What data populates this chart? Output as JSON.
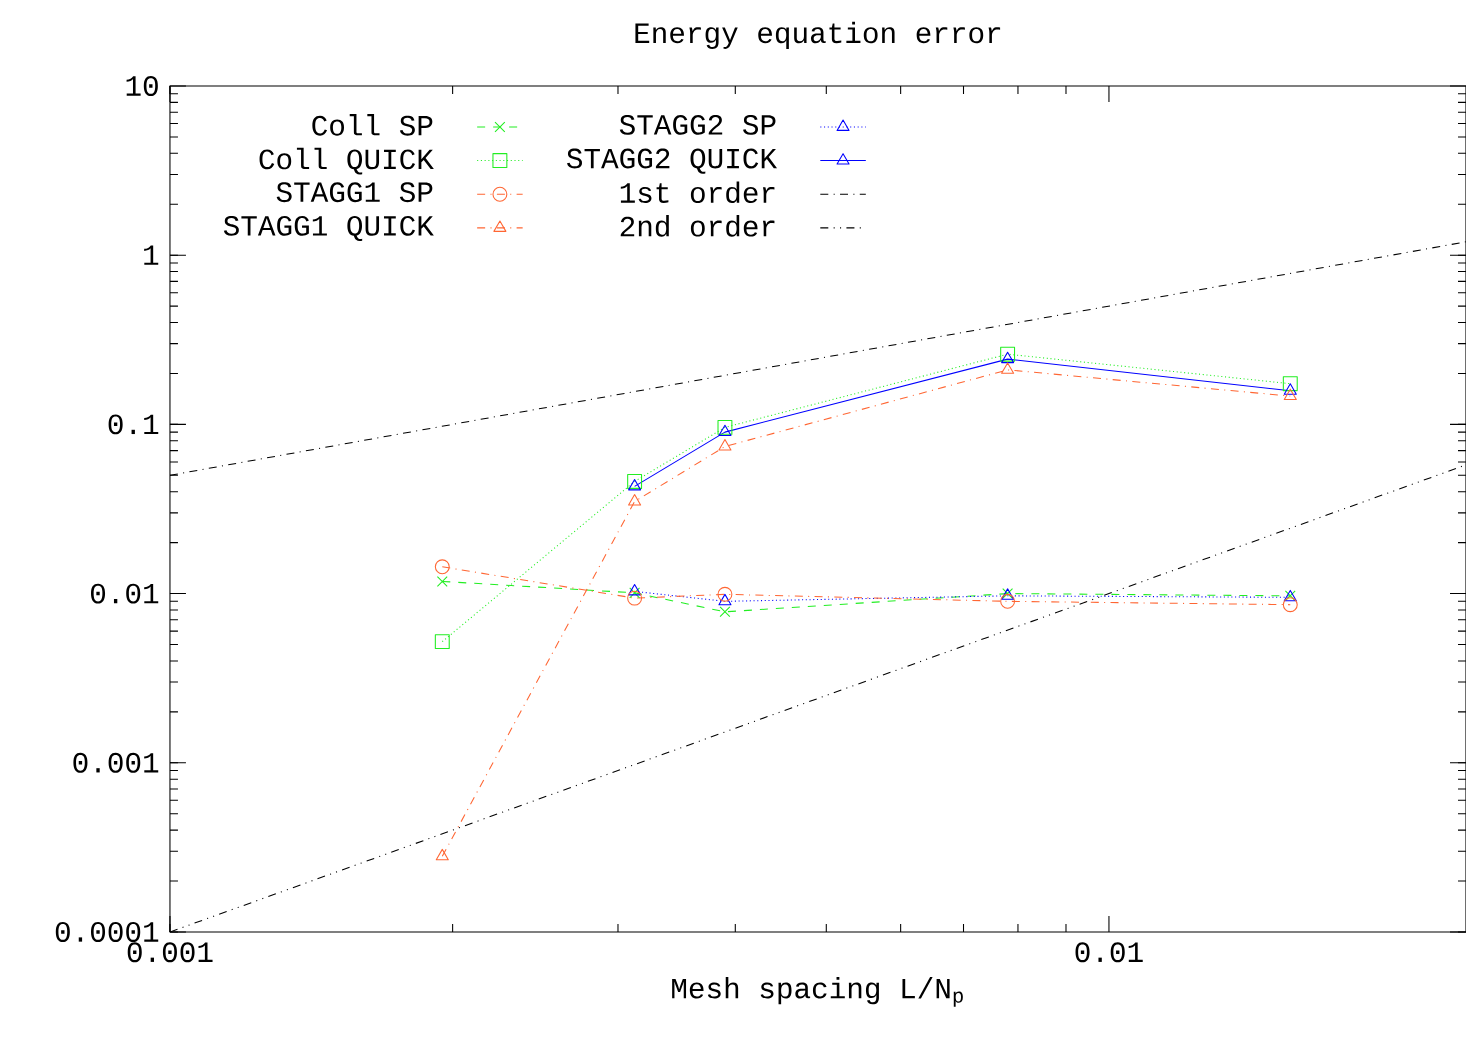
{
  "chart_data": {
    "type": "line",
    "title": "Energy equation error",
    "xlabel": "Mesh spacing L/N$_{p}$",
    "log": "xy",
    "xlim": [
      0.001,
      0.024
    ],
    "ylim": [
      0.0001,
      10
    ],
    "xticks": [
      0.001,
      0.01
    ],
    "yticks": [
      0.0001,
      0.001,
      0.01,
      0.1,
      1,
      10
    ],
    "grid": false,
    "legend": "top left",
    "series": [
      {
        "name": "Coll SP",
        "color": "#22ee22",
        "marker": "cross",
        "line_style": "dashed",
        "x": [
          0.00195,
          0.003125,
          0.0039,
          0.0078,
          0.0156
        ],
        "values": [
          0.0118,
          0.0101,
          0.0078,
          0.01,
          0.0097
        ]
      },
      {
        "name": "Coll QUICK",
        "color": "#22ee22",
        "marker": "square",
        "line_style": "dotted",
        "x": [
          0.00195,
          0.003125,
          0.0039,
          0.0078,
          0.0156
        ],
        "values": [
          0.0052,
          0.046,
          0.096,
          0.26,
          0.174
        ]
      },
      {
        "name": "STAGG1 SP",
        "color": "#ff6633",
        "marker": "circle",
        "line_style": "dashdotted",
        "x": [
          0.00195,
          0.003125,
          0.0039,
          0.0078,
          0.0156
        ],
        "values": [
          0.0144,
          0.0094,
          0.0099,
          0.009,
          0.0086
        ]
      },
      {
        "name": "STAGG1 QUICK",
        "color": "#ff6633",
        "marker": "triangle",
        "line_style": "dashdotted",
        "x": [
          0.00195,
          0.003125,
          0.0039,
          0.0078,
          0.0156
        ],
        "values": [
          0.00028,
          0.035,
          0.074,
          0.21,
          0.147
        ]
      },
      {
        "name": "STAGG2 SP",
        "color": "#0000ff",
        "marker": "triangle",
        "line_style": "dotted",
        "x": [
          0.003125,
          0.0039,
          0.0078,
          0.0156
        ],
        "values": [
          0.0103,
          0.009,
          0.0097,
          0.0095
        ]
      },
      {
        "name": "STAGG2 QUICK",
        "color": "#0000ff",
        "marker": "triangle",
        "line_style": "solid",
        "x": [
          0.003125,
          0.0039,
          0.0078,
          0.0156
        ],
        "values": [
          0.043,
          0.09,
          0.243,
          0.158
        ]
      },
      {
        "name": "1st order",
        "color": "#000000",
        "marker": "none",
        "line_style": "dashdotted",
        "x": [
          0.001,
          0.024
        ],
        "values": [
          0.05,
          1.2
        ]
      },
      {
        "name": "2nd order",
        "color": "#000000",
        "marker": "none",
        "line_style": "dashdotdotted",
        "x": [
          0.001,
          0.024
        ],
        "values": [
          0.0001,
          0.0576
        ]
      }
    ]
  }
}
